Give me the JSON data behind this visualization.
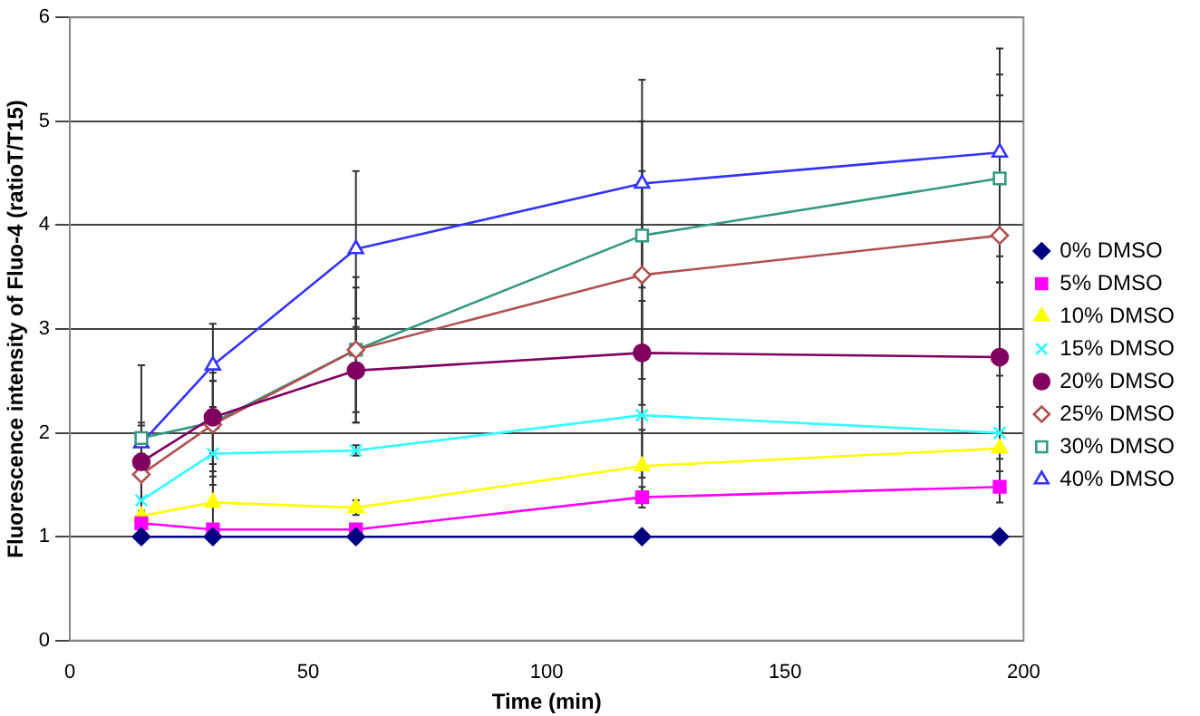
{
  "chart_data": {
    "type": "line",
    "xlabel": "Time (min)",
    "ylabel": "Fluorescence intensity of Fluo-4 (ratioT/T15)",
    "x": [
      15,
      30,
      60,
      120,
      195
    ],
    "xlim": [
      0,
      200
    ],
    "xticks": [
      0,
      50,
      100,
      150,
      200
    ],
    "ylim": [
      0,
      6
    ],
    "yticks": [
      0,
      1,
      2,
      3,
      4,
      5,
      6
    ],
    "grid": "y",
    "legend": "right",
    "line_style": "solid",
    "series": [
      {
        "name": "0% DMSO",
        "color": "#000080",
        "marker": "diamond",
        "values": [
          1,
          1,
          1,
          1,
          1
        ],
        "errors": [
          null,
          null,
          null,
          null,
          null
        ]
      },
      {
        "name": "5% DMSO",
        "color": "#ff00ff",
        "marker": "square",
        "values": [
          1.13,
          1.07,
          1.07,
          1.38,
          1.48
        ],
        "errors": [
          null,
          null,
          null,
          0.1,
          0.15
        ]
      },
      {
        "name": "10% DMSO",
        "color": "#ffff00",
        "marker": "triangle",
        "values": [
          1.2,
          1.33,
          1.28,
          1.68,
          1.85
        ],
        "errors": [
          null,
          0.3,
          0.07,
          0.35,
          0.4
        ]
      },
      {
        "name": "15% DMSO",
        "color": "#33ffff",
        "marker": "cross",
        "values": [
          1.35,
          1.8,
          1.83,
          2.17,
          2.0
        ],
        "errors": [
          null,
          0.3,
          0.05,
          0.6,
          0.25
        ]
      },
      {
        "name": "20% DMSO",
        "color": "#800060",
        "marker": "circle",
        "values": [
          1.72,
          2.15,
          2.6,
          2.77,
          2.73
        ],
        "errors": [
          0.35,
          0.35,
          0.5,
          0.5,
          0.72
        ]
      },
      {
        "name": "25% DMSO",
        "color": "#b05050",
        "marker": "diamond",
        "values": [
          1.6,
          2.08,
          2.8,
          3.52,
          3.9
        ],
        "errors": [
          0.35,
          0.5,
          0.6,
          1.0,
          1.35
        ]
      },
      {
        "name": "30% DMSO",
        "color": "#339980",
        "marker": "square",
        "values": [
          1.95,
          2.1,
          2.8,
          3.9,
          4.45
        ],
        "errors": [
          0.15,
          0.4,
          0.7,
          1.1,
          1.0
        ]
      },
      {
        "name": "40% DMSO",
        "color": "#3333ff",
        "marker": "triangle",
        "values": [
          1.9,
          2.65,
          3.77,
          4.4,
          4.7
        ],
        "errors": [
          0.75,
          0.4,
          0.75,
          1.0,
          1.0
        ]
      }
    ]
  }
}
